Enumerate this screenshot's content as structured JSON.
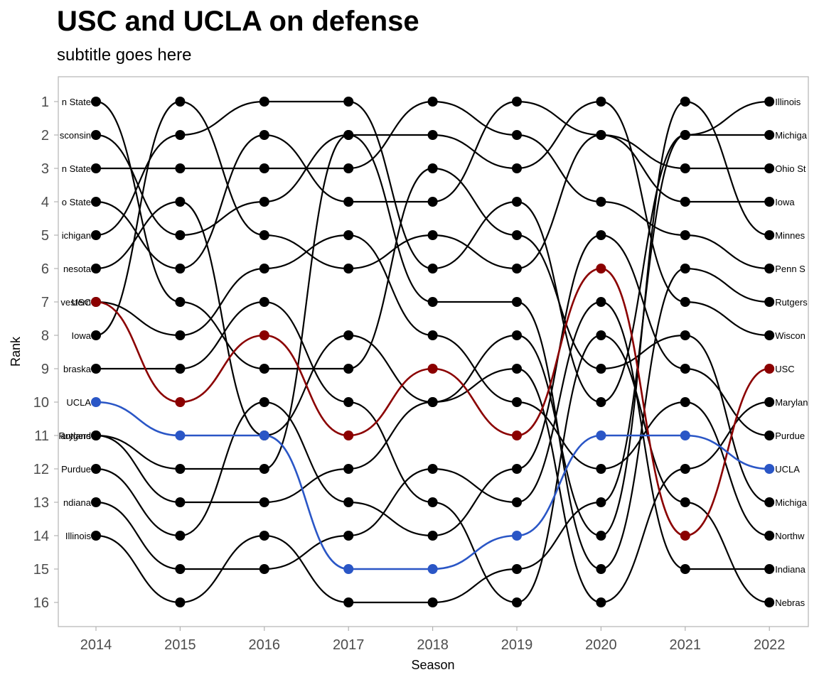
{
  "chart_data": {
    "type": "line",
    "title": "USC and UCLA on defense",
    "subtitle": "subtitle goes here",
    "xlabel": "Season",
    "ylabel": "Rank",
    "x": [
      2014,
      2015,
      2016,
      2017,
      2018,
      2019,
      2020,
      2021,
      2022
    ],
    "ylim": [
      1,
      16
    ],
    "y_reversed": true,
    "grid": false,
    "highlight_colors": {
      "USC": "#8b0000",
      "UCLA": "#2a56c6",
      "other": "#000000"
    },
    "series": [
      {
        "name": "USC",
        "values": [
          7,
          10,
          8,
          11,
          9,
          11,
          6,
          14,
          9
        ]
      },
      {
        "name": "UCLA",
        "values": [
          10,
          11,
          11,
          15,
          15,
          14,
          11,
          11,
          12
        ]
      },
      {
        "name": "Illinois",
        "values": [
          14,
          16,
          14,
          16,
          16,
          15,
          13,
          2,
          1
        ]
      },
      {
        "name": "Michigan",
        "values": [
          5,
          2,
          1,
          1,
          6,
          4,
          10,
          2,
          2
        ]
      },
      {
        "name": "Ohio State",
        "values": [
          4,
          6,
          2,
          4,
          4,
          1,
          2,
          3,
          3
        ]
      },
      {
        "name": "Iowa",
        "values": [
          8,
          1,
          5,
          6,
          5,
          6,
          2,
          4,
          4
        ]
      },
      {
        "name": "Minnesota",
        "values": [
          6,
          4,
          11,
          8,
          10,
          8,
          14,
          1,
          5
        ]
      },
      {
        "name": "Penn State",
        "values": [
          3,
          3,
          3,
          3,
          1,
          2,
          4,
          5,
          6
        ]
      },
      {
        "name": "Rutgers",
        "values": [
          11,
          12,
          12,
          2,
          7,
          7,
          15,
          6,
          7
        ]
      },
      {
        "name": "Wisconsin",
        "values": [
          2,
          5,
          4,
          2,
          2,
          3,
          1,
          7,
          8
        ]
      },
      {
        "name": "Maryland",
        "values": [
          11,
          13,
          13,
          12,
          10,
          9,
          16,
          12,
          10
        ]
      },
      {
        "name": "Purdue",
        "values": [
          12,
          14,
          10,
          13,
          14,
          12,
          5,
          9,
          11
        ]
      },
      {
        "name": "Michigan State",
        "values": [
          1,
          7,
          9,
          9,
          3,
          5,
          9,
          8,
          13
        ]
      },
      {
        "name": "Northwestern",
        "values": [
          7,
          8,
          6,
          5,
          8,
          10,
          12,
          10,
          14
        ]
      },
      {
        "name": "Indiana",
        "values": [
          13,
          15,
          15,
          14,
          12,
          13,
          7,
          15,
          15
        ]
      },
      {
        "name": "Nebraska",
        "values": [
          9,
          9,
          7,
          10,
          13,
          16,
          8,
          13,
          16
        ]
      }
    ],
    "left_labels": [
      {
        "text": "n State",
        "rank": 1
      },
      {
        "text": "sconsin",
        "rank": 2
      },
      {
        "text": "n State",
        "rank": 3
      },
      {
        "text": "o State",
        "rank": 4
      },
      {
        "text": "ichigan",
        "rank": 5
      },
      {
        "text": "nesota",
        "rank": 6
      },
      {
        "text": "vestern",
        "rank": 7
      },
      {
        "text": "USC",
        "rank": 7
      },
      {
        "text": "Iowa",
        "rank": 8
      },
      {
        "text": "braska",
        "rank": 9
      },
      {
        "text": "UCLA",
        "rank": 10
      },
      {
        "text": "Rutgers",
        "rank": 11
      },
      {
        "text": "aryland",
        "rank": 11
      },
      {
        "text": "Purdue",
        "rank": 12
      },
      {
        "text": "ndiana",
        "rank": 13
      },
      {
        "text": "Illinois",
        "rank": 14
      }
    ],
    "right_labels": [
      {
        "text": "Illinois",
        "rank": 1
      },
      {
        "text": "Michiga",
        "rank": 2
      },
      {
        "text": "Ohio St",
        "rank": 3
      },
      {
        "text": "Iowa",
        "rank": 4
      },
      {
        "text": "Minnes",
        "rank": 5
      },
      {
        "text": "Penn S",
        "rank": 6
      },
      {
        "text": "Rutgers",
        "rank": 7
      },
      {
        "text": "Wiscon",
        "rank": 8
      },
      {
        "text": "USC",
        "rank": 9
      },
      {
        "text": "Marylan",
        "rank": 10
      },
      {
        "text": "Purdue",
        "rank": 11
      },
      {
        "text": "UCLA",
        "rank": 12
      },
      {
        "text": "Michiga",
        "rank": 13
      },
      {
        "text": "Northw",
        "rank": 14
      },
      {
        "text": "Indiana",
        "rank": 15
      },
      {
        "text": "Nebras",
        "rank": 16
      }
    ]
  }
}
